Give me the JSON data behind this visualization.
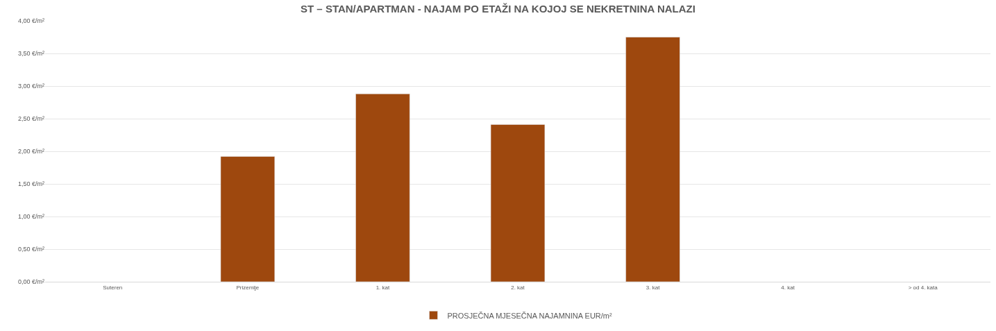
{
  "chart_data": {
    "type": "bar",
    "title": "ST – STAN/APARTMAN - NAJAM PO ETAŽI NA KOJOJ SE NEKRETNINA NALAZI",
    "categories": [
      "Suteren",
      "Prizemlje",
      "1. kat",
      "2. kat",
      "3. kat",
      "4. kat",
      "> od 4. kata"
    ],
    "series": [
      {
        "name": "PROSJEČNA MJESEČNA NAJAMNINA EUR/m²",
        "color": "#9e480e",
        "values": [
          null,
          1.92,
          2.88,
          2.41,
          3.75,
          null,
          null
        ]
      }
    ],
    "ylim": [
      0,
      4
    ],
    "yticks": [
      {
        "value": 0,
        "label": "0,00 €/m²"
      },
      {
        "value": 0.5,
        "label": "0,50 €/m²"
      },
      {
        "value": 1,
        "label": "1,00 €/m²"
      },
      {
        "value": 1.5,
        "label": "1,50 €/m²"
      },
      {
        "value": 2,
        "label": "2,00 €/m²"
      },
      {
        "value": 2.5,
        "label": "2,50 €/m²"
      },
      {
        "value": 3,
        "label": "3,00 €/m²"
      },
      {
        "value": 3.5,
        "label": "3,50 €/m²"
      },
      {
        "value": 4,
        "label": "4,00 €/m²"
      }
    ],
    "grid": "y",
    "legend": "bottom"
  }
}
